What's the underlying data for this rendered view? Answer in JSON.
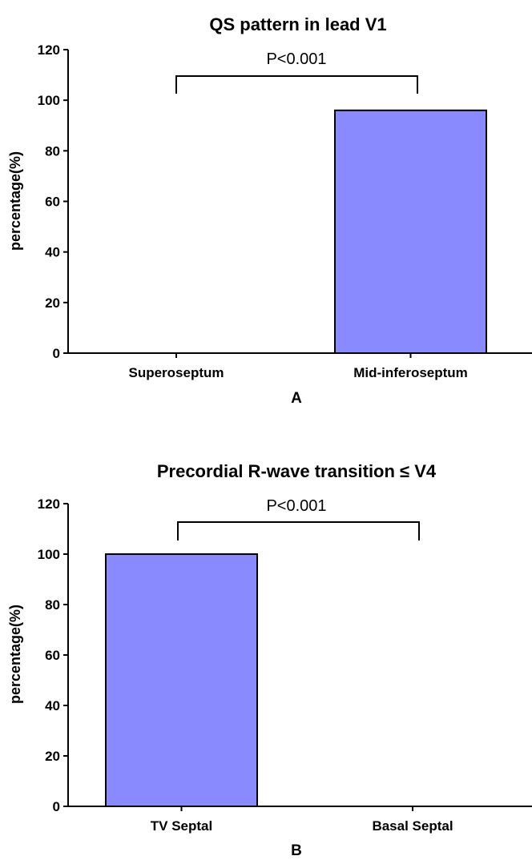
{
  "chart_data": [
    {
      "type": "bar",
      "title": "QS pattern in lead V1",
      "ylabel": "percentage(%)",
      "xlabel": "",
      "categories": [
        "Superoseptum",
        "Mid-inferoseptum"
      ],
      "values": [
        0,
        96
      ],
      "ylim": [
        0,
        120
      ],
      "yticks": [
        "0",
        "20",
        "40",
        "60",
        "80",
        "100",
        "120"
      ],
      "annotation": "P<0.001",
      "panel_label": "A",
      "bar_color": "#8a8aff"
    },
    {
      "type": "bar",
      "title": "Precordial R-wave transition ≤ V4",
      "ylabel": "percentage(%)",
      "xlabel": "",
      "categories": [
        "TV Septal",
        "Basal Septal"
      ],
      "values": [
        100,
        0
      ],
      "ylim": [
        0,
        120
      ],
      "yticks": [
        "0",
        "20",
        "40",
        "60",
        "80",
        "100",
        "120"
      ],
      "annotation": "P<0.001",
      "panel_label": "B",
      "bar_color": "#8a8aff"
    }
  ]
}
